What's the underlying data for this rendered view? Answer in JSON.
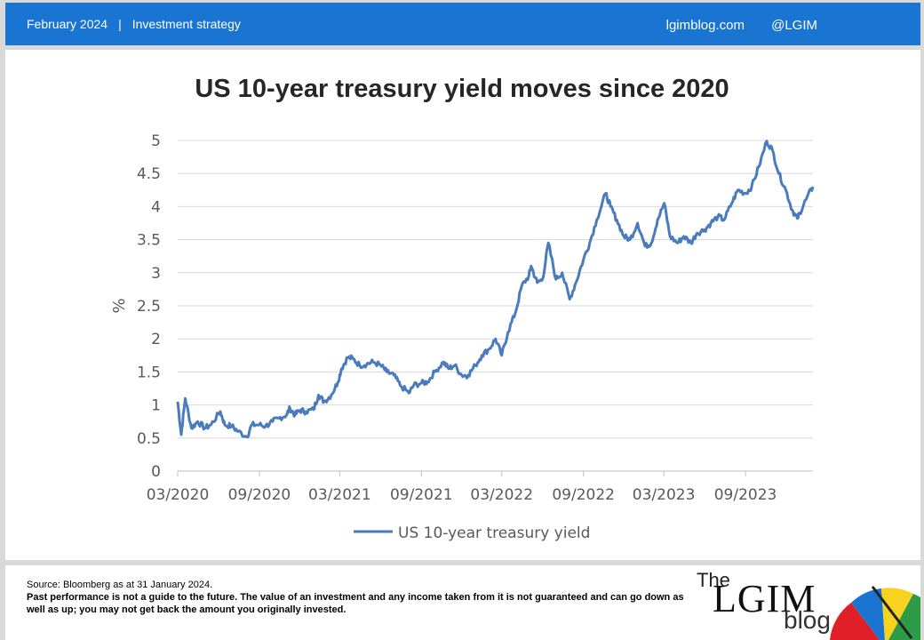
{
  "header": {
    "date": "February 2024",
    "separator": "|",
    "section": "Investment strategy",
    "site": "lgimblog.com",
    "handle": "@LGIM"
  },
  "chart_data": {
    "type": "line",
    "title": "US 10-year treasury yield moves since 2020",
    "xlabel": "",
    "ylabel": "%",
    "ylim": [
      0,
      5
    ],
    "yticks": [
      "0",
      "0.5",
      "1",
      "1.5",
      "2",
      "2.5",
      "3",
      "3.5",
      "4",
      "4.5",
      "5"
    ],
    "xticks": [
      "03/2020",
      "09/2020",
      "03/2021",
      "09/2021",
      "03/2022",
      "09/2022",
      "03/2023",
      "09/2023"
    ],
    "x_range": [
      "2020-03",
      "2024-01-31"
    ],
    "grid": "horizontal",
    "legend": "bottom-center",
    "color": "#4a7bbd",
    "series": [
      {
        "name": "US 10-year treasury yield",
        "x": [
          "2020-03-01",
          "2020-03-09",
          "2020-03-18",
          "2020-04-01",
          "2020-04-15",
          "2020-05-01",
          "2020-05-15",
          "2020-06-05",
          "2020-06-15",
          "2020-07-01",
          "2020-07-15",
          "2020-08-04",
          "2020-08-15",
          "2020-09-01",
          "2020-09-15",
          "2020-10-01",
          "2020-10-15",
          "2020-11-01",
          "2020-11-09",
          "2020-11-20",
          "2020-12-01",
          "2020-12-15",
          "2021-01-01",
          "2021-01-12",
          "2021-01-25",
          "2021-02-10",
          "2021-02-25",
          "2021-03-05",
          "2021-03-19",
          "2021-03-31",
          "2021-04-15",
          "2021-05-01",
          "2021-05-15",
          "2021-06-01",
          "2021-06-15",
          "2021-07-01",
          "2021-07-15",
          "2021-08-04",
          "2021-08-15",
          "2021-09-01",
          "2021-09-15",
          "2021-10-01",
          "2021-10-21",
          "2021-11-01",
          "2021-11-15",
          "2021-12-01",
          "2021-12-15",
          "2022-01-01",
          "2022-01-15",
          "2022-02-01",
          "2022-02-15",
          "2022-03-01",
          "2022-03-15",
          "2022-04-01",
          "2022-04-15",
          "2022-05-01",
          "2022-05-06",
          "2022-05-20",
          "2022-06-01",
          "2022-06-14",
          "2022-07-01",
          "2022-07-15",
          "2022-08-01",
          "2022-08-15",
          "2022-09-01",
          "2022-09-15",
          "2022-10-01",
          "2022-10-21",
          "2022-11-01",
          "2022-11-15",
          "2022-12-01",
          "2022-12-15",
          "2023-01-01",
          "2023-01-18",
          "2023-02-01",
          "2023-02-15",
          "2023-03-02",
          "2023-03-15",
          "2023-04-01",
          "2023-04-15",
          "2023-05-01",
          "2023-05-15",
          "2023-06-01",
          "2023-06-15",
          "2023-07-01",
          "2023-07-15",
          "2023-08-01",
          "2023-08-15",
          "2023-09-01",
          "2023-09-15",
          "2023-10-01",
          "2023-10-19",
          "2023-11-01",
          "2023-11-15",
          "2023-12-01",
          "2023-12-15",
          "2023-12-27",
          "2024-01-01",
          "2024-01-15",
          "2024-01-31"
        ],
        "values": [
          1.05,
          0.55,
          1.1,
          0.65,
          0.75,
          0.65,
          0.7,
          0.9,
          0.7,
          0.68,
          0.6,
          0.52,
          0.7,
          0.7,
          0.68,
          0.75,
          0.8,
          0.85,
          0.95,
          0.85,
          0.92,
          0.9,
          0.93,
          1.15,
          1.05,
          1.15,
          1.35,
          1.55,
          1.72,
          1.7,
          1.6,
          1.62,
          1.65,
          1.6,
          1.5,
          1.45,
          1.3,
          1.18,
          1.3,
          1.33,
          1.35,
          1.5,
          1.65,
          1.55,
          1.6,
          1.45,
          1.45,
          1.6,
          1.75,
          1.85,
          2.0,
          1.75,
          2.1,
          2.4,
          2.8,
          2.95,
          3.1,
          2.85,
          2.9,
          3.45,
          2.9,
          3.0,
          2.6,
          2.85,
          3.2,
          3.45,
          3.8,
          4.2,
          4.0,
          3.8,
          3.55,
          3.5,
          3.75,
          3.4,
          3.45,
          3.8,
          4.05,
          3.55,
          3.45,
          3.55,
          3.45,
          3.6,
          3.65,
          3.75,
          3.85,
          3.8,
          4.05,
          4.25,
          4.2,
          4.3,
          4.6,
          4.99,
          4.85,
          4.5,
          4.25,
          3.95,
          3.82,
          3.9,
          4.1,
          4.3
        ]
      }
    ]
  },
  "footer": {
    "source": "Source: Bloomberg as at 31 January 2024.",
    "disclaimer": "Past performance is not a guide to the future. The value of an investment and any income taken from it is not guaranteed and can go down as well as up; you may not get back the amount you originally invested."
  },
  "brand": {
    "the": "The",
    "lgim": "LGIM",
    "blog": "blog",
    "icon": "umbrella-icon"
  }
}
